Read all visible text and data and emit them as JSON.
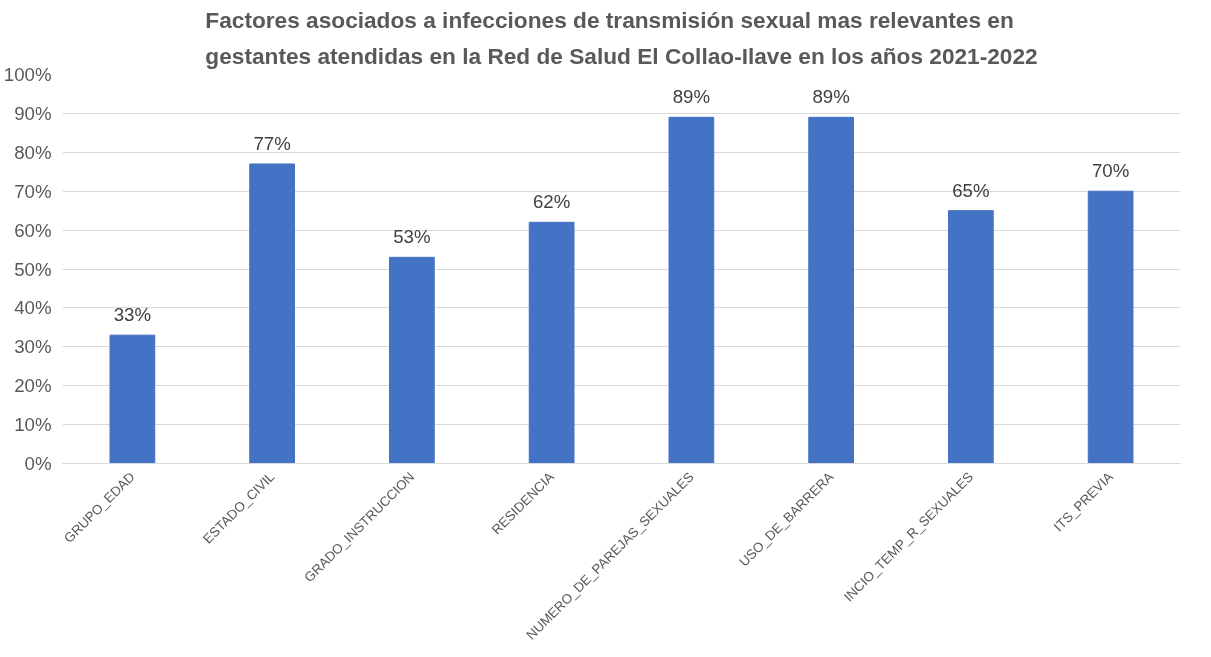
{
  "chart_data": {
    "type": "bar",
    "title": "Factores asociados a infecciones de transmisión sexual mas relevantes en\ngestantes atendidas en la Red de Salud El Collao-Ilave en los años 2021-2022",
    "categories": [
      "GRUPO_EDAD",
      "ESTADO_CIVIL",
      "GRADO_INSTRUCCION",
      "RESIDENCIA",
      "NUMERO_DE_PAREJAS_SEXUALES",
      "USO_DE_BARRERA",
      "INCIO_TEMP_R_SEXUALES",
      "ITS_PREVIA"
    ],
    "values": [
      33,
      77,
      53,
      62,
      89,
      89,
      65,
      70
    ],
    "value_labels": [
      "33%",
      "77%",
      "53%",
      "62%",
      "89%",
      "89%",
      "65%",
      "70%"
    ],
    "color": "#4472c4",
    "ylim": [
      0,
      100
    ],
    "yticks": [
      {
        "value": 0,
        "label": "0%"
      },
      {
        "value": 10,
        "label": "10%"
      },
      {
        "value": 20,
        "label": "20%"
      },
      {
        "value": 30,
        "label": "30%"
      },
      {
        "value": 40,
        "label": "40%"
      },
      {
        "value": 50,
        "label": "50%"
      },
      {
        "value": 60,
        "label": "60%"
      },
      {
        "value": 70,
        "label": "70%"
      },
      {
        "value": 80,
        "label": "80%"
      },
      {
        "value": 90,
        "label": "90%"
      },
      {
        "value": 100,
        "label": "100%"
      }
    ],
    "grid": "y"
  }
}
